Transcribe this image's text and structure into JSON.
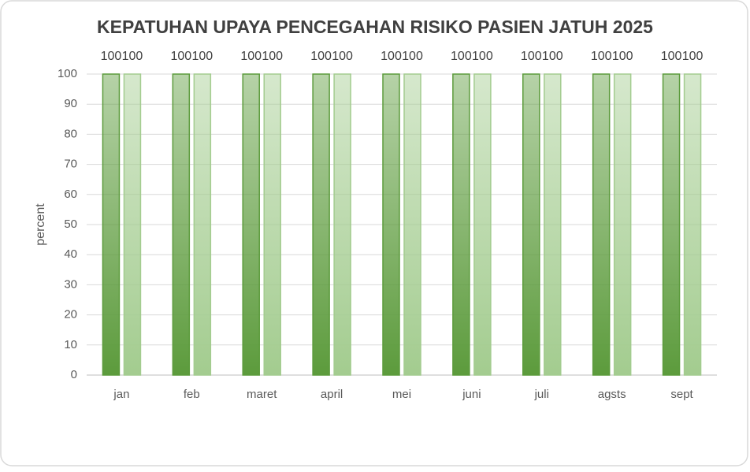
{
  "chart_data": {
    "type": "bar",
    "title": "KEPATUHAN UPAYA PENCEGAHAN RISIKO PASIEN JATUH 2025",
    "y_label": "percent",
    "categories": [
      "jan",
      "feb",
      "maret",
      "april",
      "mei",
      "juni",
      "juli",
      "agsts",
      "sept"
    ],
    "series": [
      {
        "color": "#5c9b3c",
        "values": [
          100,
          100,
          100,
          100,
          100,
          100,
          100,
          100,
          100
        ]
      },
      {
        "color": "#a3cc8f",
        "values": [
          100,
          100,
          100,
          100,
          100,
          100,
          100,
          100,
          100
        ]
      }
    ],
    "ylim": [
      0,
      100
    ],
    "yticks": [
      0,
      10,
      20,
      30,
      40,
      50,
      60,
      70,
      80,
      90,
      100
    ],
    "grid": true,
    "data_labels": true
  }
}
